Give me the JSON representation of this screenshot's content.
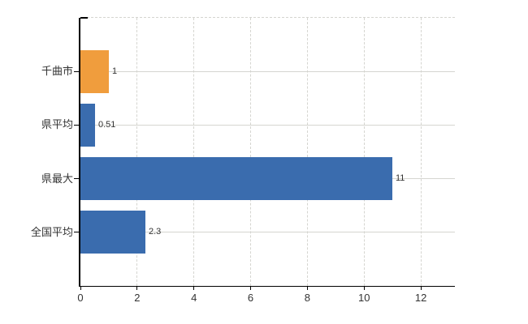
{
  "chart_data": {
    "type": "bar",
    "orientation": "horizontal",
    "title": "",
    "xlabel": "",
    "ylabel": "",
    "categories": [
      "千曲市",
      "県平均",
      "県最大",
      "全国平均"
    ],
    "values": [
      1,
      0.51,
      11,
      2.3
    ],
    "value_labels": [
      "1",
      "0.51",
      "11",
      "2.3"
    ],
    "bar_colors": [
      "#f09d3d",
      "#3a6cae",
      "#3a6cae",
      "#3a6cae"
    ],
    "xticks": [
      0,
      2,
      4,
      6,
      8,
      10,
      12
    ],
    "xtick_labels": [
      "0",
      "2",
      "4",
      "6",
      "8",
      "10",
      "12"
    ],
    "xlim": [
      0,
      13.2
    ],
    "grid": true,
    "legend": false
  },
  "colors": {
    "highlight_bar": "#f09d3d",
    "default_bar": "#3a6cae",
    "gridline": "#d5d5d0",
    "axis": "#000000",
    "text": "#333333",
    "background": "#ffffff"
  }
}
